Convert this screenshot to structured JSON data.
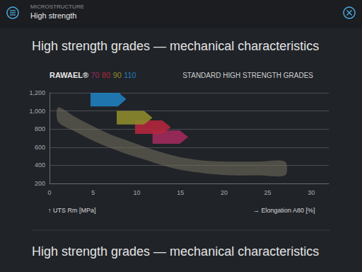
{
  "header": {
    "section": "MICROSTRUCTURE",
    "page": "High strength"
  },
  "heading": "High strength grades — mechanical characteristics",
  "footer_heading": "High strength grades — mechanical characteristics",
  "chart_data": {
    "type": "range",
    "brand": "RAWAEL®",
    "y_label": "↑ UTS Rm [MPa]",
    "x_label": "→ Elongation A80 [%]",
    "xlim": [
      0,
      32
    ],
    "xticks": [
      0,
      5,
      10,
      15,
      20,
      25,
      30
    ],
    "ylim": [
      200,
      1200
    ],
    "yticks": [
      200,
      400,
      600,
      800,
      {
        "value": 1000,
        "label": "1,000"
      },
      {
        "value": 1200,
        "label": "1,200"
      }
    ],
    "grid": true,
    "series": [
      {
        "name": "70",
        "color": "#9e2a5c",
        "elongation": [
          11.8,
          15.9
        ],
        "uts": [
          637,
          786
        ]
      },
      {
        "name": "80",
        "color": "#b3263c",
        "elongation": [
          9.8,
          13.9
        ],
        "uts": [
          747,
          895
        ]
      },
      {
        "name": "90",
        "color": "#8c8a2c",
        "elongation": [
          7.7,
          11.8
        ],
        "uts": [
          850,
          1000
        ]
      },
      {
        "name": "110",
        "color": "#1f7fbd",
        "elongation": [
          4.7,
          8.8
        ],
        "uts": [
          1050,
          1210
        ]
      }
    ],
    "band": {
      "name": "STANDARD HIGH STRENGTH GRADES",
      "color": "#77735f",
      "x": [
        1,
        3,
        5,
        7,
        9,
        11,
        13,
        15,
        18,
        21,
        24,
        27
      ],
      "upper": [
        1040,
        930,
        830,
        740,
        670,
        600,
        540,
        490,
        450,
        440,
        440,
        440
      ],
      "lower": [
        880,
        770,
        670,
        590,
        520,
        460,
        400,
        350,
        310,
        290,
        290,
        290
      ]
    }
  }
}
